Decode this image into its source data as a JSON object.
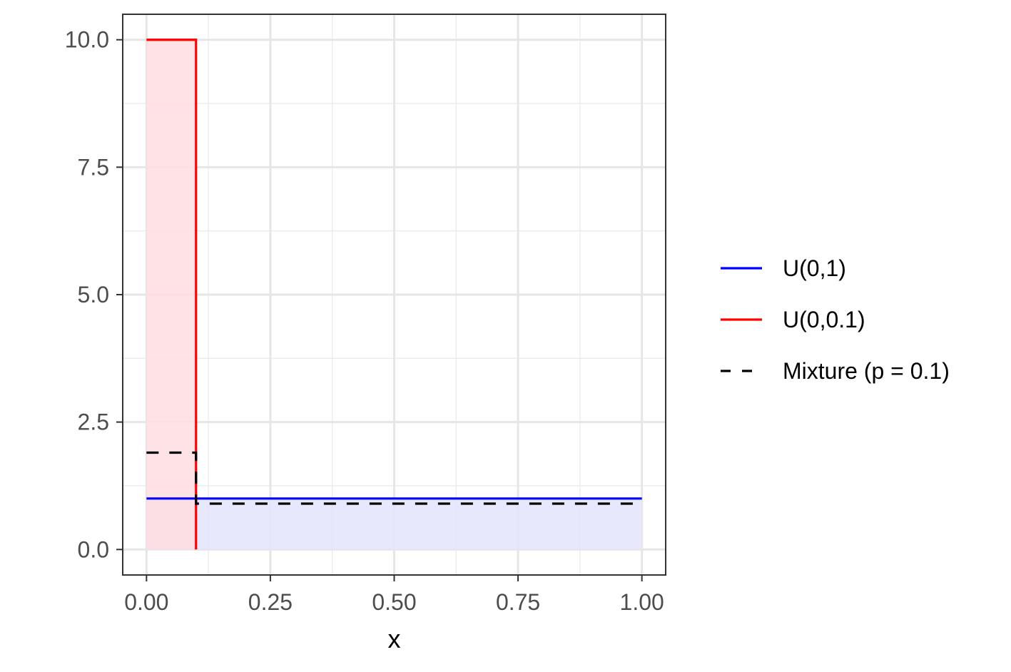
{
  "chart_data": {
    "type": "line",
    "title": "",
    "xlabel": "x",
    "ylabel": "",
    "xlim": [
      -0.048,
      1.048
    ],
    "ylim": [
      -0.5,
      10.5
    ],
    "x_ticks": [
      0,
      0.25,
      0.5,
      0.75,
      1
    ],
    "x_tick_labels": [
      "0.00",
      "0.25",
      "0.50",
      "0.75",
      "1.00"
    ],
    "x_minor_ticks": [
      0.125,
      0.375,
      0.625,
      0.875
    ],
    "y_ticks": [
      0,
      2.5,
      5,
      7.5,
      10
    ],
    "y_tick_labels": [
      "0.0",
      "2.5",
      "5.0",
      "7.5",
      "10.0"
    ],
    "y_minor_ticks": [
      1.25,
      3.75,
      6.25,
      8.75
    ],
    "grid": true,
    "legend_position": "right",
    "series": [
      {
        "name": "U(0,1)",
        "color": "#0000ff",
        "fill": "#e4e4fb",
        "dashed": false,
        "points": [
          [
            0,
            1
          ],
          [
            1,
            1
          ]
        ],
        "area": [
          [
            0,
            1
          ],
          [
            1,
            1
          ]
        ]
      },
      {
        "name": "U(0,0.1)",
        "color": "#ff0000",
        "fill": "#ffdde1",
        "dashed": false,
        "points": [
          [
            0,
            10
          ],
          [
            0.1,
            10
          ],
          [
            0.1,
            0
          ]
        ],
        "area": [
          [
            0,
            10
          ],
          [
            0.1,
            10
          ]
        ]
      },
      {
        "name": "Mixture (p = 0.1)",
        "color": "#000000",
        "dashed": true,
        "points": [
          [
            0,
            1.9
          ],
          [
            0.1,
            1.9
          ],
          [
            0.1,
            0.9
          ],
          [
            1,
            0.9
          ]
        ]
      }
    ]
  }
}
